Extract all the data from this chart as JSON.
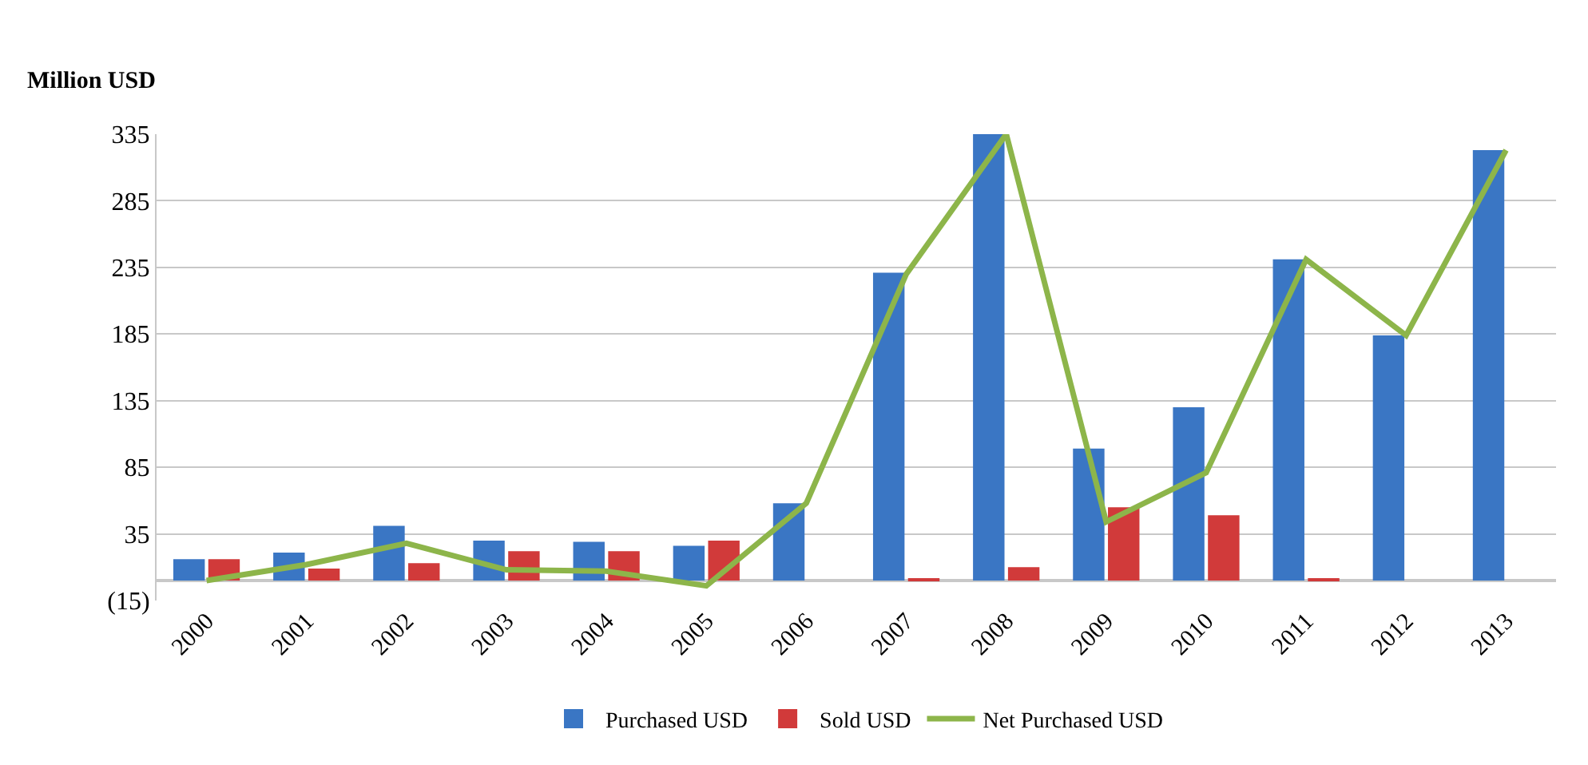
{
  "chart_data": {
    "type": "bar",
    "ylabel": "Million USD",
    "categories": [
      "2000",
      "2001",
      "2002",
      "2003",
      "2004",
      "2005",
      "2006",
      "2007",
      "2008",
      "2009",
      "2010",
      "2011",
      "2012",
      "2013"
    ],
    "series": [
      {
        "name": "Purchased USD",
        "color": "#3a76c4",
        "values": [
          16,
          21,
          41,
          30,
          29,
          26,
          58,
          231,
          335,
          99,
          130,
          241,
          184,
          323
        ]
      },
      {
        "name": "Sold USD",
        "color": "#d13a3a",
        "values": [
          16,
          9,
          13,
          22,
          22,
          30,
          0,
          1,
          10,
          55,
          49,
          1,
          0,
          0
        ]
      },
      {
        "name": "Net Purchased USD",
        "type": "line",
        "color": "#8db54a",
        "values": [
          0,
          12,
          28,
          8,
          7,
          -4,
          58,
          230,
          335,
          44,
          81,
          241,
          184,
          323
        ]
      }
    ],
    "ylim": [
      -15,
      335
    ],
    "yticks": [
      {
        "value": -15,
        "label": "(15)"
      },
      35,
      85,
      135,
      185,
      235,
      285,
      335
    ],
    "grid": "y",
    "legend": "bottom",
    "marker": "none",
    "line_style": "solid"
  }
}
